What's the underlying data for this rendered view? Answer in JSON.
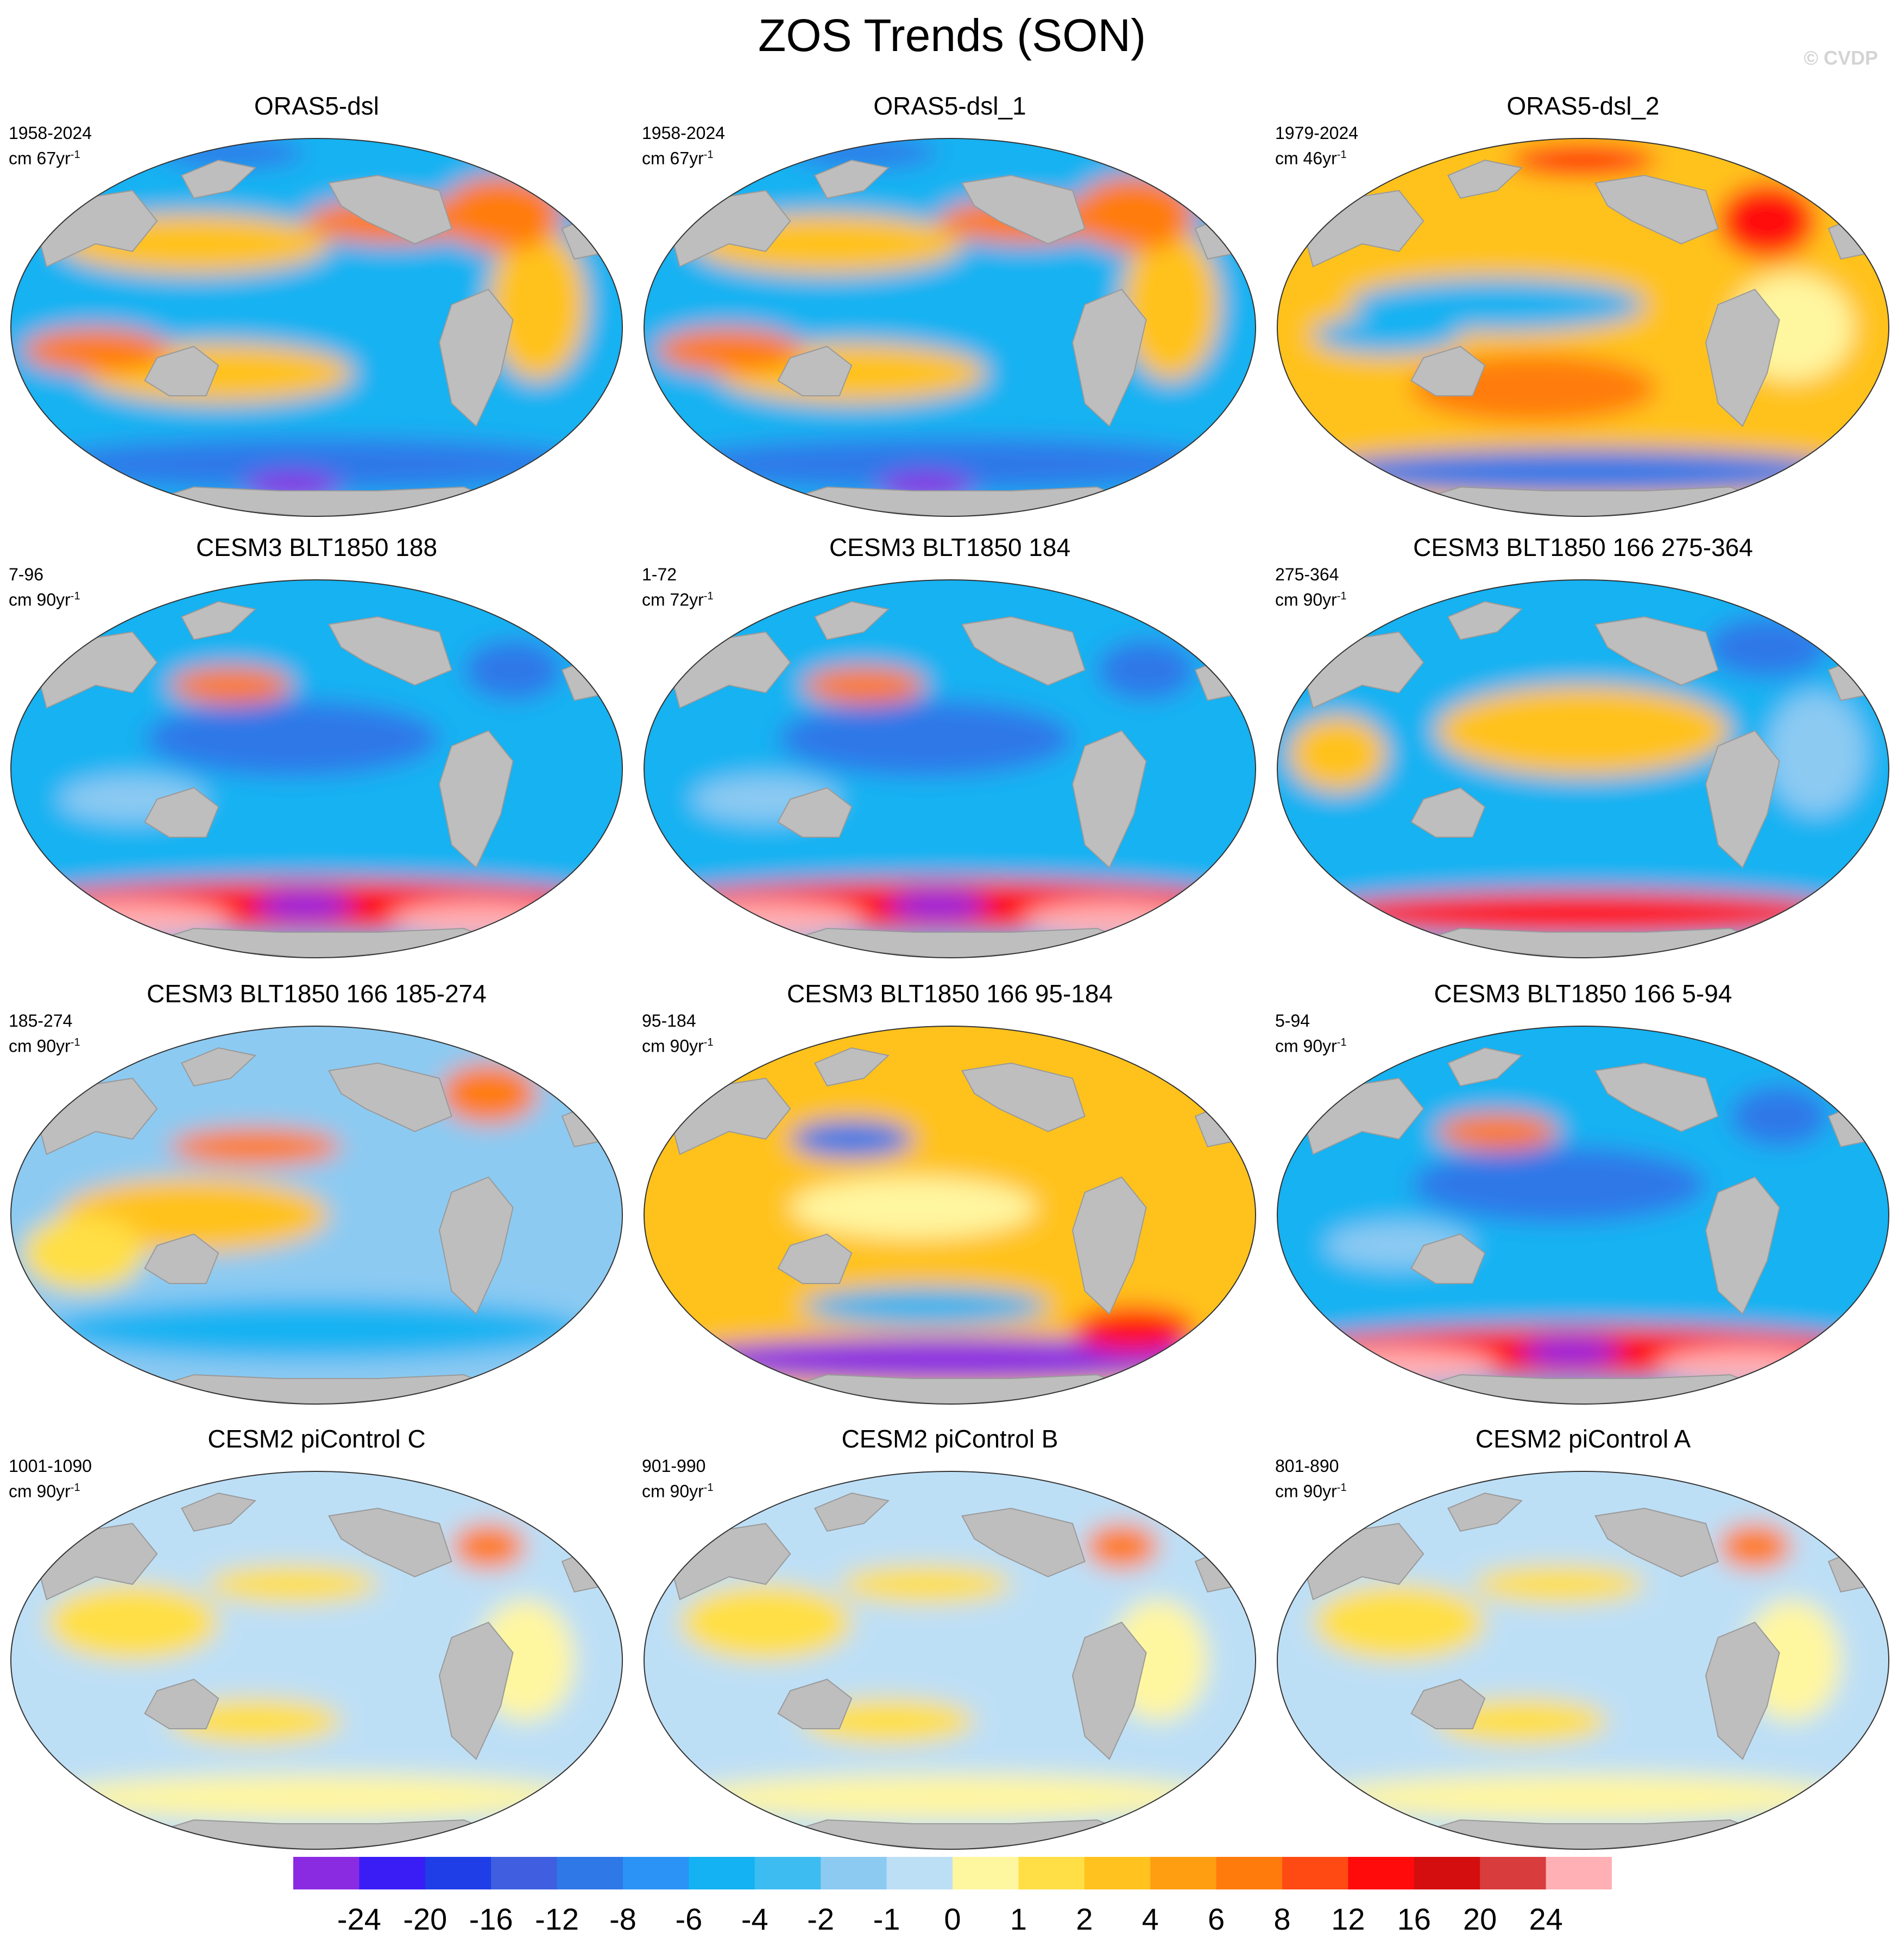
{
  "figure": {
    "title": "ZOS Trends (SON)",
    "watermark": "© CVDP"
  },
  "panels": [
    {
      "title": "ORAS5-dsl",
      "years": "1958-2024",
      "units_prefix": "cm 67yr",
      "units_exp": "-1",
      "pattern": "obs"
    },
    {
      "title": "ORAS5-dsl_1",
      "years": "1958-2024",
      "units_prefix": "cm 67yr",
      "units_exp": "-1",
      "pattern": "obs"
    },
    {
      "title": "ORAS5-dsl_2",
      "years": "1979-2024",
      "units_prefix": "cm 46yr",
      "units_exp": "-1",
      "pattern": "obs2"
    },
    {
      "title": "CESM3 BLT1850 188",
      "years": "7-96",
      "units_prefix": "cm 90yr",
      "units_exp": "-1",
      "pattern": "cool_south_warm"
    },
    {
      "title": "CESM3 BLT1850 184",
      "years": "1-72",
      "units_prefix": "cm 72yr",
      "units_exp": "-1",
      "pattern": "cool_south_warm"
    },
    {
      "title": "CESM3 BLT1850 166 275-364",
      "years": "275-364",
      "units_prefix": "cm 90yr",
      "units_exp": "-1",
      "pattern": "warm_pacific"
    },
    {
      "title": "CESM3 BLT1850 166 185-274",
      "years": "185-274",
      "units_prefix": "cm 90yr",
      "units_exp": "-1",
      "pattern": "mixed"
    },
    {
      "title": "CESM3 BLT1850 166 95-184",
      "years": "95-184",
      "units_prefix": "cm 90yr",
      "units_exp": "-1",
      "pattern": "warm_south_cool"
    },
    {
      "title": "CESM3 BLT1850 166 5-94",
      "years": "5-94",
      "units_prefix": "cm 90yr",
      "units_exp": "-1",
      "pattern": "cool_south_warm"
    },
    {
      "title": "CESM2 piControl C",
      "years": "1001-1090",
      "units_prefix": "cm 90yr",
      "units_exp": "-1",
      "pattern": "weak"
    },
    {
      "title": "CESM2 piControl B",
      "years": "901-990",
      "units_prefix": "cm 90yr",
      "units_exp": "-1",
      "pattern": "weak"
    },
    {
      "title": "CESM2 piControl A",
      "years": "801-890",
      "units_prefix": "cm 90yr",
      "units_exp": "-1",
      "pattern": "weak"
    }
  ],
  "colorbar": {
    "labels": [
      "-24",
      "-20",
      "-16",
      "-12",
      "-8",
      "-6",
      "-4",
      "-2",
      "-1",
      "0",
      "1",
      "2",
      "4",
      "6",
      "8",
      "12",
      "16",
      "20",
      "24"
    ],
    "colors": [
      "#8a2be2",
      "#3a1cf5",
      "#1f3ee8",
      "#3f5fe0",
      "#2f78e8",
      "#2a93f5",
      "#14b2f2",
      "#3cbcf0",
      "#8ccaf2",
      "#bddff6",
      "#fff6a0",
      "#ffdf45",
      "#ffc21e",
      "#ff9e10",
      "#ff7b0c",
      "#ff4a14",
      "#ff0b0b",
      "#d40e0e",
      "#d93c3c",
      "#ffb0b4"
    ]
  }
}
